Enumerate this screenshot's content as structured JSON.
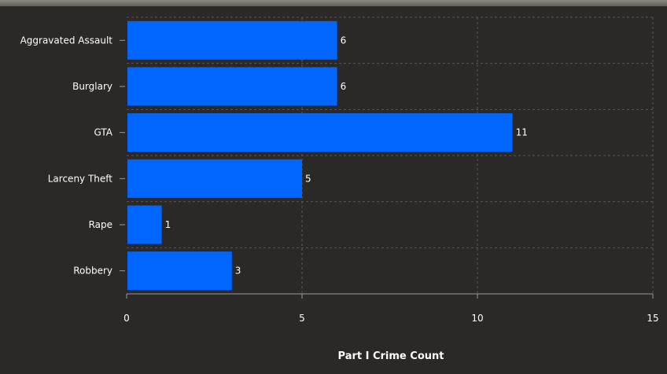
{
  "colors": {
    "background": "#2a2928",
    "bar": "#0066ff",
    "grid": "#555555",
    "axis": "#9a9a9a",
    "text": "#ffffff"
  },
  "chart_data": {
    "type": "bar",
    "orientation": "horizontal",
    "categories": [
      "Aggravated Assault",
      "Burglary",
      "GTA",
      "Larceny Theft",
      "Rape",
      "Robbery"
    ],
    "values": [
      6,
      6,
      11,
      5,
      1,
      3
    ],
    "title": "",
    "xlabel": "Part I Crime Count",
    "ylabel": "",
    "xlim": [
      0,
      15
    ],
    "xticks": [
      0,
      5,
      10,
      15
    ],
    "grid": "dashed",
    "data_labels": true
  }
}
